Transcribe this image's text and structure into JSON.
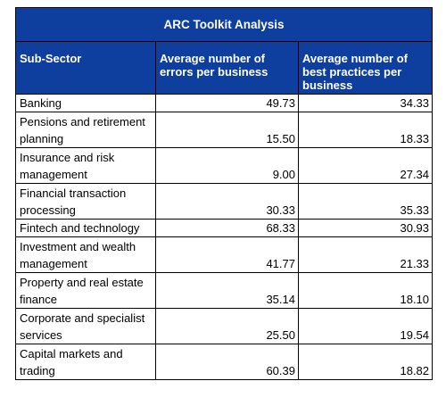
{
  "table": {
    "title": "ARC Toolkit Analysis",
    "headers": [
      "Sub-Sector",
      "Average number of errors per business",
      "Average number of best practices per business"
    ],
    "rows": [
      {
        "sector": "Banking",
        "errors": "49.73",
        "best": "34.33"
      },
      {
        "sector": "Pensions and retirement planning",
        "errors": "15.50",
        "best": "18.33"
      },
      {
        "sector": "Insurance and risk management",
        "errors": "9.00",
        "best": "27.34"
      },
      {
        "sector": "Financial transaction processing",
        "errors": "30.33",
        "best": "35.33"
      },
      {
        "sector": "Fintech and technology",
        "errors": "68.33",
        "best": "30.93"
      },
      {
        "sector": "Investment and wealth management",
        "errors": "41.77",
        "best": "21.33"
      },
      {
        "sector": "Property and real estate finance",
        "errors": "35.14",
        "best": "18.10"
      },
      {
        "sector": "Corporate and specialist services",
        "errors": "25.50",
        "best": "19.54"
      },
      {
        "sector": "Capital markets and trading",
        "errors": "60.39",
        "best": "18.82"
      }
    ],
    "colors": {
      "header_bg": "#0e3f9e",
      "header_text": "#ffffff"
    }
  }
}
